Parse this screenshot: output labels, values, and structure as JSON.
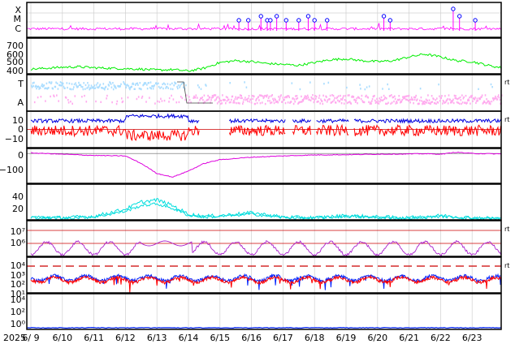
{
  "chart_data": {
    "type": "line",
    "year_label": "2025",
    "x_ticks": [
      "6/ 9",
      "6/10",
      "6/11",
      "6/12",
      "6/13",
      "6/14",
      "6/15",
      "6/16",
      "6/17",
      "6/18",
      "6/19",
      "6/20",
      "6/21",
      "6/22",
      "6/23"
    ],
    "grid": true,
    "panels": [
      {
        "id": "xray_flares",
        "y_tick_labels": [
          "X",
          "M",
          "C"
        ],
        "series_color": "#ff00ff",
        "flare_markers_day": [
          6.6,
          6.9,
          7.3,
          7.5,
          7.6,
          7.8,
          8.1,
          8.5,
          8.8,
          9.0,
          9.4,
          11.2,
          11.4,
          13.4,
          13.6,
          14.1
        ],
        "flare_markers_level": [
          "C",
          "C",
          "M",
          "C",
          "C",
          "M",
          "C",
          "C",
          "M",
          "C",
          "C",
          "M",
          "C",
          "X",
          "M",
          "C"
        ]
      },
      {
        "id": "solar_wind_speed",
        "y_tick_labels": [
          "700",
          "600",
          "500",
          "400"
        ],
        "ylim": [
          380,
          760
        ],
        "series_color": "#00ee00",
        "x_day": [
          0,
          0.5,
          1,
          1.5,
          2,
          2.5,
          3,
          3.5,
          4,
          4.5,
          5,
          5.5,
          6,
          6.5,
          7,
          7.5,
          8,
          8.5,
          9,
          9.5,
          10,
          10.5,
          11,
          11.5,
          12,
          12.5,
          13,
          13.5,
          14,
          14.5,
          15
        ],
        "values": [
          430,
          440,
          450,
          455,
          445,
          440,
          435,
          430,
          420,
          425,
          410,
          440,
          500,
          520,
          510,
          490,
          480,
          470,
          500,
          530,
          540,
          520,
          510,
          520,
          560,
          590,
          560,
          520,
          510,
          470,
          440
        ]
      },
      {
        "id": "imf_sector",
        "y_tick_labels": [
          "T",
          "A"
        ],
        "right_label": "rt",
        "series_color_toward": "#aaddff",
        "series_color_away": "#ffaaee"
      },
      {
        "id": "imf_components",
        "y_tick_labels": [
          "10",
          "0",
          "−10"
        ],
        "ylim": [
          -15,
          15
        ],
        "right_label": "rt",
        "bt_color": "#0000dd",
        "bz_color": "#ff0000"
      },
      {
        "id": "dst_index",
        "y_tick_labels": [
          "0",
          "−100"
        ],
        "ylim": [
          -120,
          20
        ],
        "series_color": "#dd00dd",
        "x_day": [
          0,
          1,
          2,
          3,
          3.5,
          4,
          4.5,
          5,
          5.5,
          6,
          6.5,
          7,
          8,
          9,
          10,
          11,
          12,
          12.5,
          13,
          13.5,
          14,
          15
        ],
        "values": [
          2,
          -3,
          -8,
          -10,
          -40,
          -80,
          -95,
          -70,
          -40,
          -25,
          -20,
          -15,
          -10,
          -6,
          -5,
          -3,
          -2,
          -1,
          -3,
          5,
          0,
          -2
        ]
      },
      {
        "id": "proton_density",
        "y_tick_labels": [
          "40",
          "20"
        ],
        "ylim": [
          0,
          50
        ],
        "series_color": "#00dddd",
        "x_day": [
          0,
          1,
          2,
          3,
          3.5,
          4,
          4.5,
          5,
          5.5,
          6,
          7,
          8,
          9,
          10,
          11,
          12,
          13,
          14,
          15
        ],
        "values": [
          4,
          3,
          5,
          15,
          25,
          28,
          20,
          8,
          5,
          6,
          10,
          4,
          3,
          6,
          4,
          3,
          6,
          3,
          2
        ]
      },
      {
        "id": "electron_flux",
        "y_tick_labels": [
          "10⁷",
          "10⁶"
        ],
        "right_label": "rt",
        "series_color": "#aa22cc",
        "threshold_color": "#cc0000"
      },
      {
        "id": "proton_flux",
        "y_tick_labels": [
          "10⁴",
          "10³",
          "10²",
          "10¹"
        ],
        "right_label": "rt",
        "series_colors": [
          "#0022ff",
          "#ff0000"
        ],
        "threshold_style": "dashed"
      },
      {
        "id": "high_energy_proton",
        "y_tick_labels": [
          "10⁴",
          "10²",
          "10⁰"
        ],
        "series_color": "#0022ff"
      }
    ]
  }
}
